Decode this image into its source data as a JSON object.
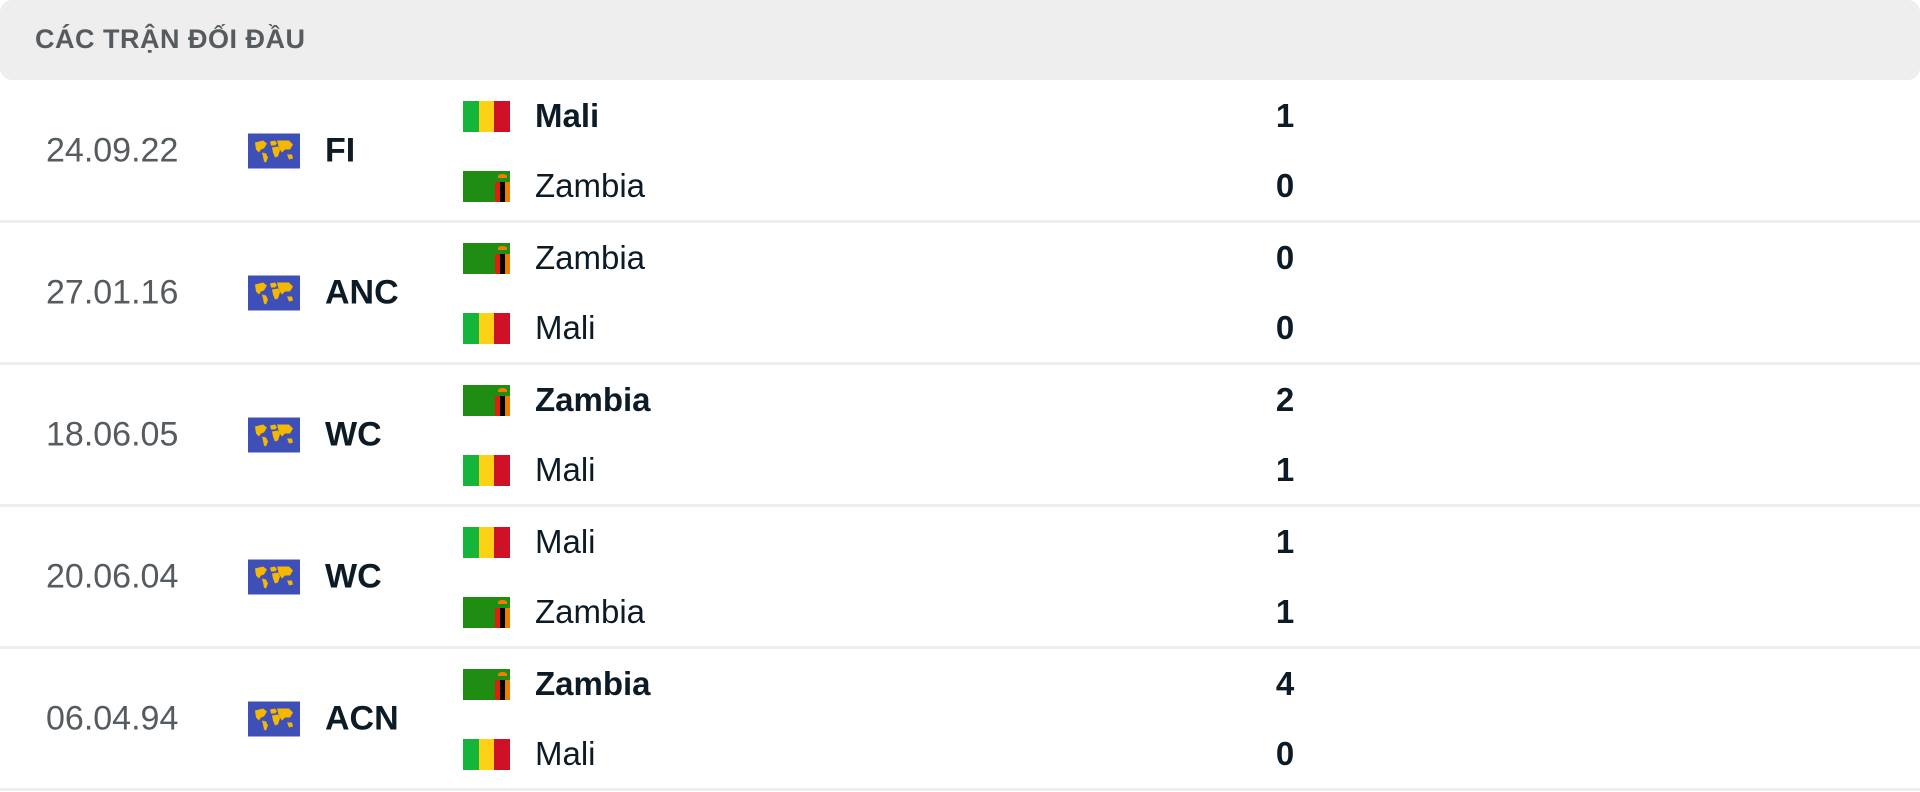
{
  "section_title": "CÁC TRẬN ĐỐI ĐẦU",
  "colors": {
    "header_bg": "#eeeeee",
    "competition_icon_bg": "#3f4fb8",
    "mali_flag": [
      "#14b53a",
      "#fcd116",
      "#ce1126"
    ],
    "zambia_flag": "#1f8c12"
  },
  "matches": [
    {
      "date": "24.09.22",
      "competition": "FI",
      "competition_icon": "world-map-icon",
      "home": {
        "team": "Mali",
        "flag": "mali",
        "score": "1",
        "winner": true
      },
      "away": {
        "team": "Zambia",
        "flag": "zambia",
        "score": "0",
        "winner": false
      }
    },
    {
      "date": "27.01.16",
      "competition": "ANC",
      "competition_icon": "world-map-icon",
      "home": {
        "team": "Zambia",
        "flag": "zambia",
        "score": "0",
        "winner": false
      },
      "away": {
        "team": "Mali",
        "flag": "mali",
        "score": "0",
        "winner": false
      }
    },
    {
      "date": "18.06.05",
      "competition": "WC",
      "competition_icon": "world-map-icon",
      "home": {
        "team": "Zambia",
        "flag": "zambia",
        "score": "2",
        "winner": true
      },
      "away": {
        "team": "Mali",
        "flag": "mali",
        "score": "1",
        "winner": false
      }
    },
    {
      "date": "20.06.04",
      "competition": "WC",
      "competition_icon": "world-map-icon",
      "home": {
        "team": "Mali",
        "flag": "mali",
        "score": "1",
        "winner": false
      },
      "away": {
        "team": "Zambia",
        "flag": "zambia",
        "score": "1",
        "winner": false
      }
    },
    {
      "date": "06.04.94",
      "competition": "ACN",
      "competition_icon": "world-map-icon",
      "home": {
        "team": "Zambia",
        "flag": "zambia",
        "score": "4",
        "winner": true
      },
      "away": {
        "team": "Mali",
        "flag": "mali",
        "score": "0",
        "winner": false
      }
    }
  ]
}
